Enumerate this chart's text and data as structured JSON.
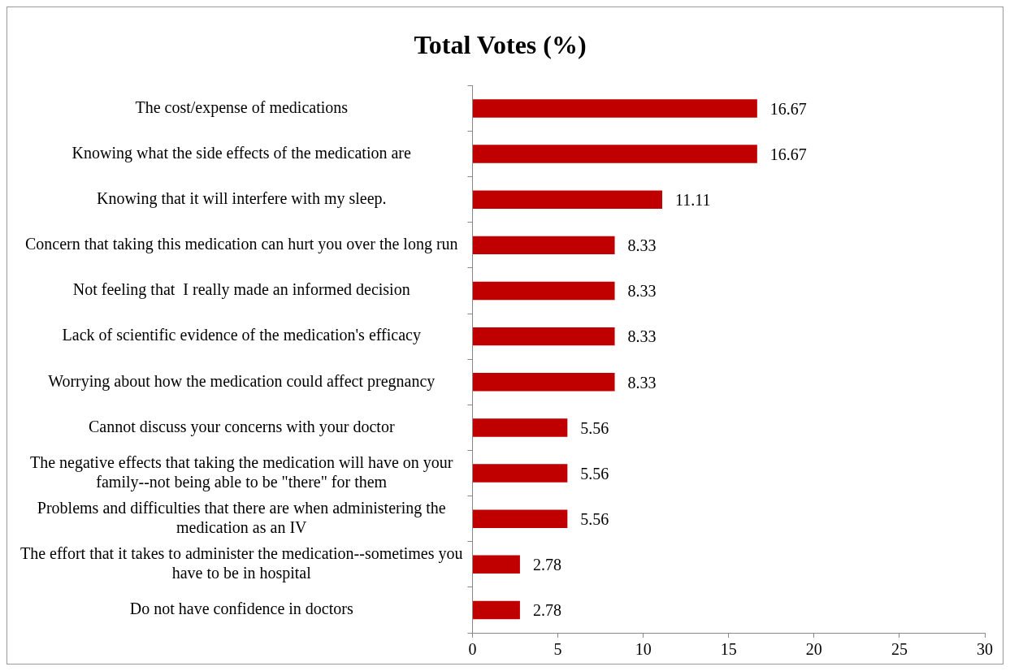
{
  "chart_data": {
    "type": "bar",
    "orientation": "horizontal",
    "title": "Total Votes (%)",
    "categories": [
      "The cost/expense of medications",
      "Knowing what the side effects of the medication are",
      "Knowing that it will interfere with my sleep.",
      "Concern that taking this medication can hurt you over the long run",
      "Not feeling that  I really made an informed decision",
      "Lack of scientific evidence of the medication's efficacy",
      "Worrying about how the medication could affect pregnancy",
      "Cannot discuss your concerns with your doctor",
      "The negative effects that taking the medication will have on your family--not being able to be \"there\" for them",
      "Problems and difficulties that there are when administering the medication as an IV",
      "The effort that it takes to administer the medication--sometimes you have to be in hospital",
      "Do not have confidence in doctors"
    ],
    "values": [
      16.67,
      16.67,
      11.11,
      8.33,
      8.33,
      8.33,
      8.33,
      5.56,
      5.56,
      5.56,
      2.78,
      2.78
    ],
    "color": "#c00000",
    "xlim": [
      0,
      30
    ],
    "xticks": [
      0,
      5,
      10,
      15,
      20,
      25,
      30
    ],
    "data_labels": true,
    "legend": false,
    "grid": false
  }
}
